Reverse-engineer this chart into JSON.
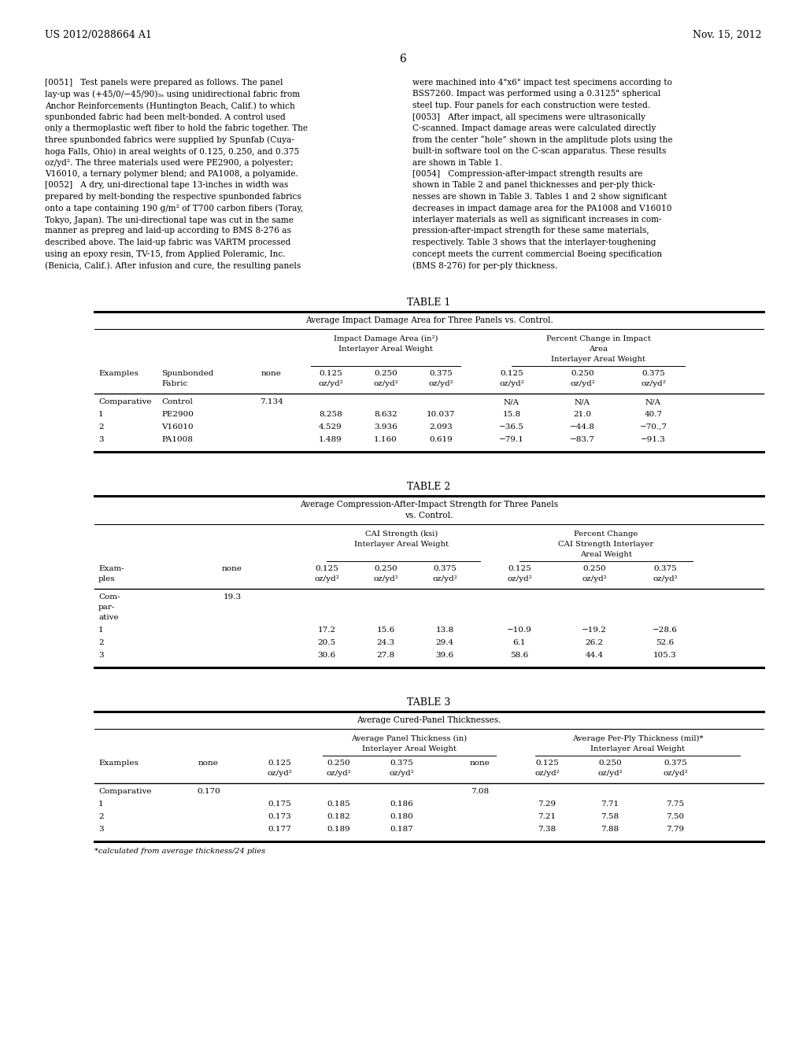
{
  "bg_color": "#ffffff",
  "header_left": "US 2012/0288664 A1",
  "header_right": "Nov. 15, 2012",
  "page_number": "6"
}
